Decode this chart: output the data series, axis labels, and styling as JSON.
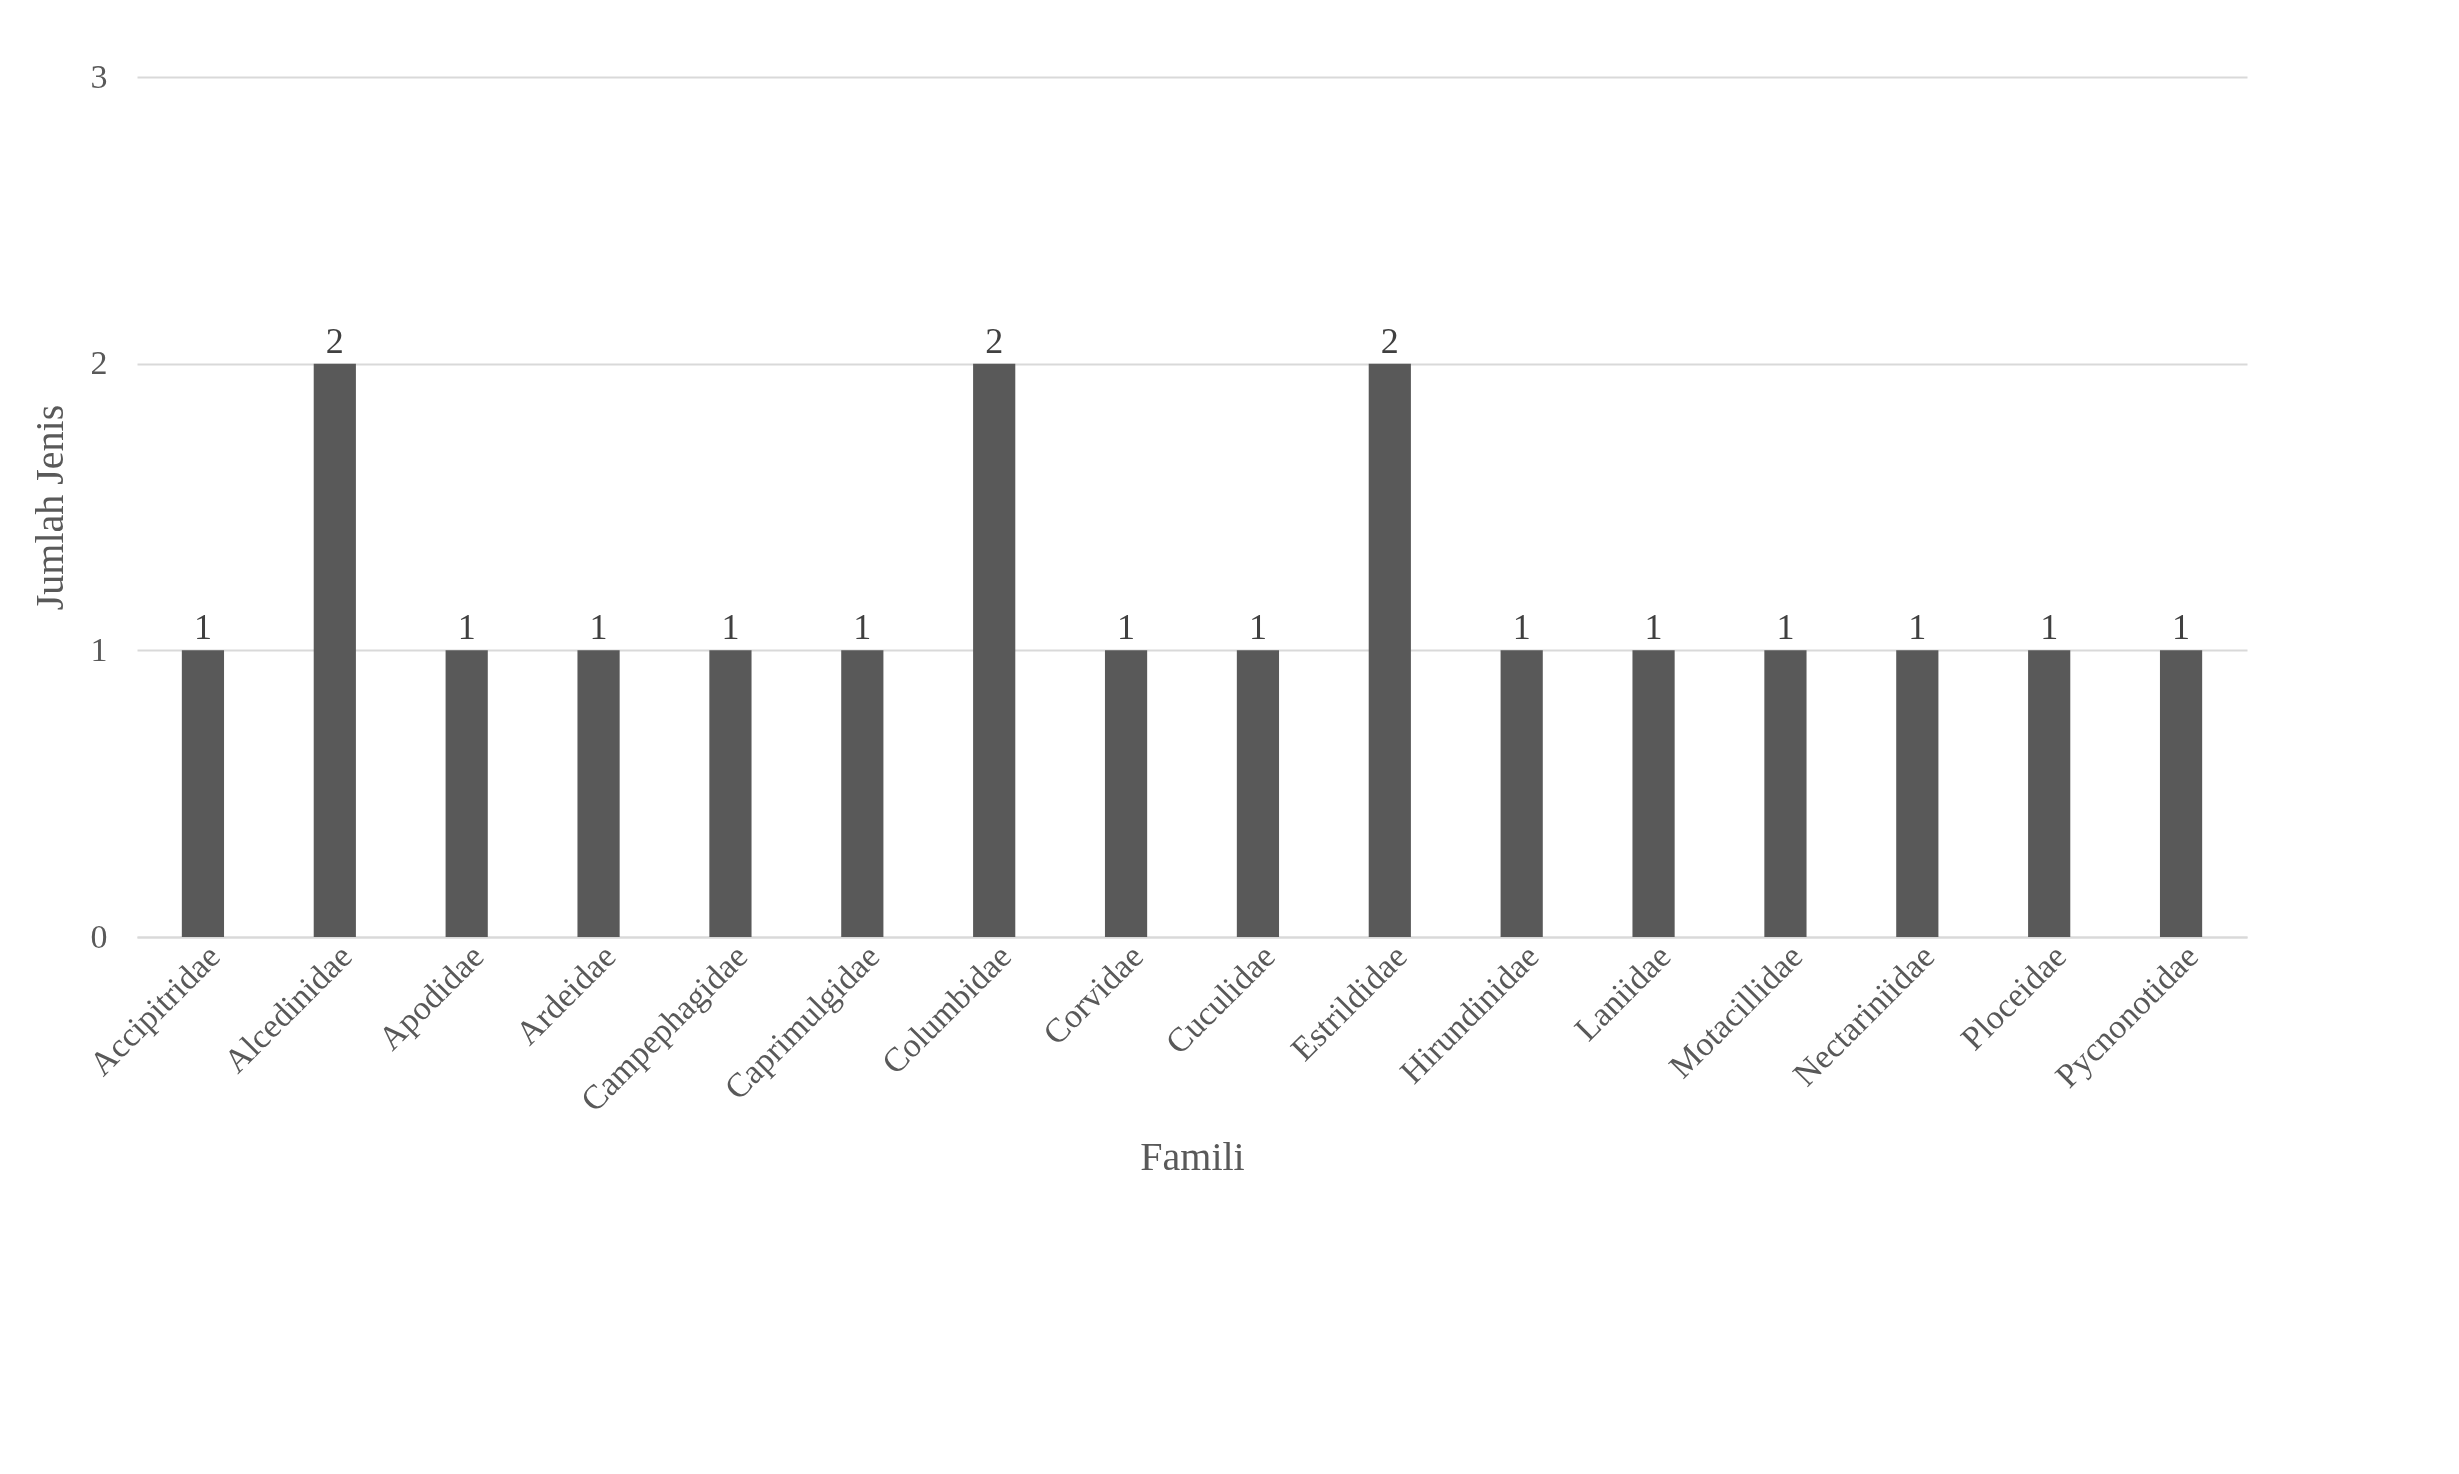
{
  "chart_data": {
    "type": "bar",
    "xlabel": "Famili",
    "ylabel": "Jumlah Jenis",
    "categories": [
      "Accipitridae",
      "Alcedinidae",
      "Apodidae",
      "Ardeidae",
      "Campephagidae",
      "Caprimulgidae",
      "Columbidae",
      "Corvidae",
      "Cuculidae",
      "Estrildidae",
      "Hirundinidae",
      "Laniidae",
      "Motacillidae",
      "Nectariniidae",
      "Ploceidae",
      "Pycnonotidae"
    ],
    "values": [
      1,
      2,
      1,
      1,
      1,
      1,
      2,
      1,
      1,
      2,
      1,
      1,
      1,
      1,
      1,
      1
    ],
    "color": "#595959",
    "ylim": [
      0,
      3
    ],
    "yticks": [
      0,
      1,
      2,
      3
    ],
    "grid": "y",
    "data_labels": true
  }
}
